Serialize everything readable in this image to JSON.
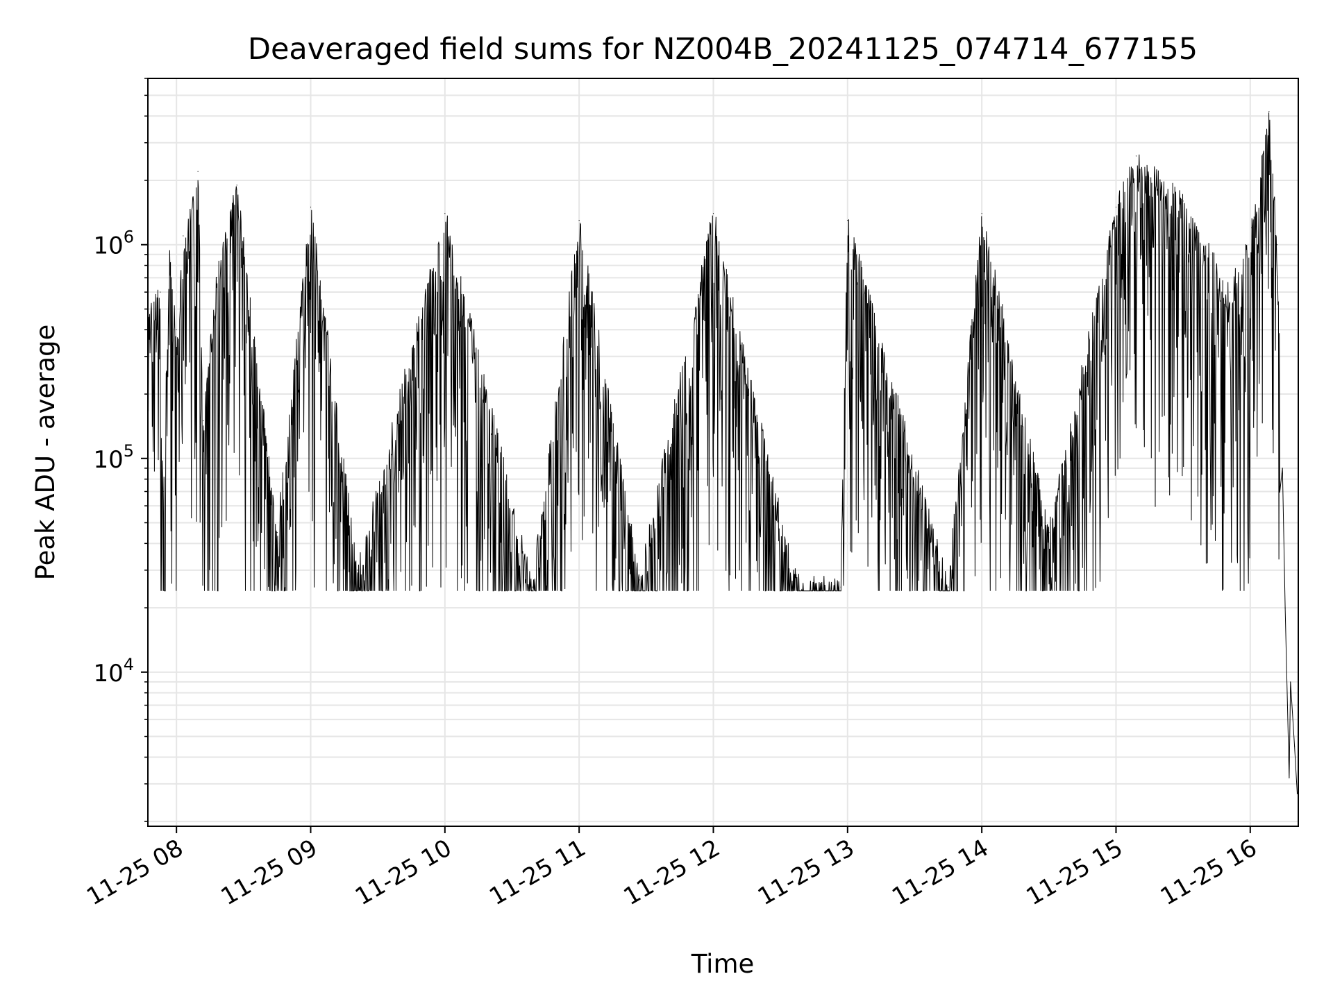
{
  "chart_data": {
    "type": "line",
    "title": "Deaveraged field sums for NZ004B_20241125_074714_677155",
    "xlabel": "Time",
    "ylabel": "Peak ADU - average",
    "x_ticks": [
      "11-25 08",
      "11-25 09",
      "11-25 10",
      "11-25 11",
      "11-25 12",
      "11-25 13",
      "11-25 14",
      "11-25 15",
      "11-25 16"
    ],
    "x_tick_hours": [
      8,
      9,
      10,
      11,
      12,
      13,
      14,
      15,
      16
    ],
    "xlim_hours": [
      7.787,
      16.358
    ],
    "y_scale": "log",
    "ylim": [
      1900,
      6000000
    ],
    "y_ticks": [
      {
        "base": "10",
        "exp": "4",
        "value": 10000
      },
      {
        "base": "10",
        "exp": "5",
        "value": 100000
      },
      {
        "base": "10",
        "exp": "6",
        "value": 1000000
      }
    ],
    "grid": true,
    "series": [
      {
        "color": "#000000",
        "line_width": 1,
        "points": [
          {
            "hour": 7.787,
            "value": 480000
          },
          {
            "hour": 7.88,
            "value": 600000
          },
          {
            "hour": 7.9,
            "value": 70000
          },
          {
            "hour": 7.95,
            "value": 900000
          },
          {
            "hour": 8.0,
            "value": 400000
          },
          {
            "hour": 8.05,
            "value": 1100000
          },
          {
            "hour": 8.16,
            "value": 2200000
          },
          {
            "hour": 8.2,
            "value": 150000
          },
          {
            "hour": 8.3,
            "value": 700000
          },
          {
            "hour": 8.45,
            "value": 1900000
          },
          {
            "hour": 8.75,
            "value": 45000
          },
          {
            "hour": 9.0,
            "value": 1500000
          },
          {
            "hour": 9.35,
            "value": 30000
          },
          {
            "hour": 10.0,
            "value": 1400000
          },
          {
            "hour": 10.65,
            "value": 25000
          },
          {
            "hour": 11.0,
            "value": 1300000
          },
          {
            "hour": 11.45,
            "value": 27000
          },
          {
            "hour": 12.0,
            "value": 1400000
          },
          {
            "hour": 12.6,
            "value": 28000
          },
          {
            "hour": 12.95,
            "value": 25000
          },
          {
            "hour": 13.0,
            "value": 1300000
          },
          {
            "hour": 13.75,
            "value": 25000
          },
          {
            "hour": 14.0,
            "value": 1400000
          },
          {
            "hour": 14.5,
            "value": 45000
          },
          {
            "hour": 15.0,
            "value": 1500000
          },
          {
            "hour": 15.15,
            "value": 2600000
          },
          {
            "hour": 15.5,
            "value": 1600000
          },
          {
            "hour": 15.85,
            "value": 600000
          },
          {
            "hour": 16.01,
            "value": 1200000
          },
          {
            "hour": 16.14,
            "value": 4200000
          },
          {
            "hour": 16.2,
            "value": 1000000
          },
          {
            "hour": 16.24,
            "value": 90000
          },
          {
            "hour": 16.26,
            "value": 20000
          },
          {
            "hour": 16.29,
            "value": 3200
          },
          {
            "hour": 16.3,
            "value": 9000
          },
          {
            "hour": 16.33,
            "value": 4500
          },
          {
            "hour": 16.35,
            "value": 2700
          }
        ]
      }
    ]
  }
}
